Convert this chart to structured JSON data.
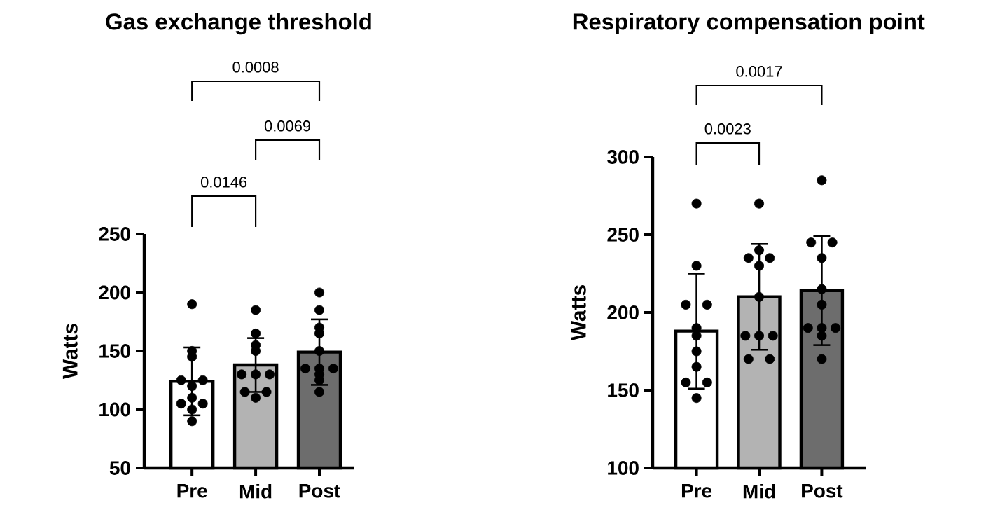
{
  "chart_data": [
    {
      "type": "bar",
      "title": "Gas exchange threshold",
      "ylabel": "Watts",
      "categories": [
        "Pre",
        "Mid",
        "Post"
      ],
      "ylim": [
        50,
        250
      ],
      "yticks": [
        50,
        100,
        150,
        200,
        250
      ],
      "annotations": [
        "0.0146",
        "0.0069",
        "0.0008"
      ],
      "series": [
        {
          "values": [
            124,
            138,
            149
          ],
          "colors": [
            "#ffffff",
            "#b3b3b3",
            "#6d6d6d"
          ],
          "errors": [
            29,
            23,
            28
          ]
        },
        {
          "type": "scatter",
          "marker": "circle",
          "color": "#000000",
          "x": [
            "Pre",
            "Pre",
            "Pre",
            "Pre",
            "Pre",
            "Pre",
            "Pre",
            "Pre",
            "Pre",
            "Pre",
            "Pre",
            "Mid",
            "Mid",
            "Mid",
            "Mid",
            "Mid",
            "Mid",
            "Mid",
            "Mid",
            "Mid",
            "Mid",
            "Post",
            "Post",
            "Post",
            "Post",
            "Post",
            "Post",
            "Post",
            "Post",
            "Post",
            "Post",
            "Post"
          ],
          "values": [
            190,
            150,
            145,
            125,
            125,
            120,
            110,
            105,
            105,
            100,
            90,
            185,
            165,
            155,
            150,
            130,
            130,
            130,
            115,
            115,
            110,
            200,
            185,
            170,
            165,
            150,
            135,
            135,
            135,
            130,
            125,
            115
          ]
        }
      ]
    },
    {
      "type": "bar",
      "title": "Respiratory compensation point",
      "ylabel": "Watts",
      "categories": [
        "Pre",
        "Mid",
        "Post"
      ],
      "ylim": [
        100,
        300
      ],
      "yticks": [
        100,
        150,
        200,
        250,
        300
      ],
      "annotations": [
        "0.0023",
        "0.0017"
      ],
      "series": [
        {
          "values": [
            188,
            210,
            214
          ],
          "colors": [
            "#ffffff",
            "#b3b3b3",
            "#6d6d6d"
          ],
          "errors": [
            37,
            34,
            35
          ]
        },
        {
          "type": "scatter",
          "marker": "circle",
          "color": "#000000",
          "x": [
            "Pre",
            "Pre",
            "Pre",
            "Pre",
            "Pre",
            "Pre",
            "Pre",
            "Pre",
            "Pre",
            "Pre",
            "Pre",
            "Mid",
            "Mid",
            "Mid",
            "Mid",
            "Mid",
            "Mid",
            "Mid",
            "Mid",
            "Mid",
            "Mid",
            "Mid",
            "Post",
            "Post",
            "Post",
            "Post",
            "Post",
            "Post",
            "Post",
            "Post",
            "Post",
            "Post",
            "Post"
          ],
          "values": [
            270,
            230,
            205,
            205,
            190,
            185,
            175,
            165,
            155,
            155,
            145,
            270,
            240,
            235,
            235,
            230,
            210,
            185,
            185,
            185,
            170,
            170,
            285,
            245,
            245,
            235,
            215,
            205,
            190,
            190,
            190,
            185,
            170
          ]
        }
      ]
    }
  ]
}
